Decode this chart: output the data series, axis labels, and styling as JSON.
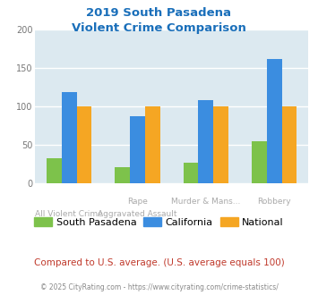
{
  "title_line1": "2019 South Pasadena",
  "title_line2": "Violent Crime Comparison",
  "title_color": "#1a6fba",
  "x_labels_row1": [
    "",
    "Rape",
    "Murder & Mans...",
    "Robbery"
  ],
  "x_labels_row2": [
    "All Violent Crime",
    "Aggravated Assault",
    "",
    ""
  ],
  "series": {
    "South Pasadena": {
      "values": [
        32,
        20,
        26,
        54
      ],
      "color": "#7dc24b"
    },
    "California": {
      "values": [
        118,
        87,
        108,
        162
      ],
      "color": "#3b8de0"
    },
    "National": {
      "values": [
        100,
        100,
        100,
        100
      ],
      "color": "#f5a623"
    }
  },
  "ylim": [
    0,
    200
  ],
  "yticks": [
    0,
    50,
    100,
    150,
    200
  ],
  "grid_color": "#ffffff",
  "plot_area_color": "#dce9f0",
  "fig_bg_color": "#ffffff",
  "footer_note": "Compared to U.S. average. (U.S. average equals 100)",
  "footer_note_color": "#c0392b",
  "copyright": "© 2025 CityRating.com - https://www.cityrating.com/crime-statistics/",
  "copyright_color": "#888888",
  "legend_labels": [
    "South Pasadena",
    "California",
    "National"
  ],
  "legend_colors": [
    "#7dc24b",
    "#3b8de0",
    "#f5a623"
  ],
  "bar_width": 0.22
}
